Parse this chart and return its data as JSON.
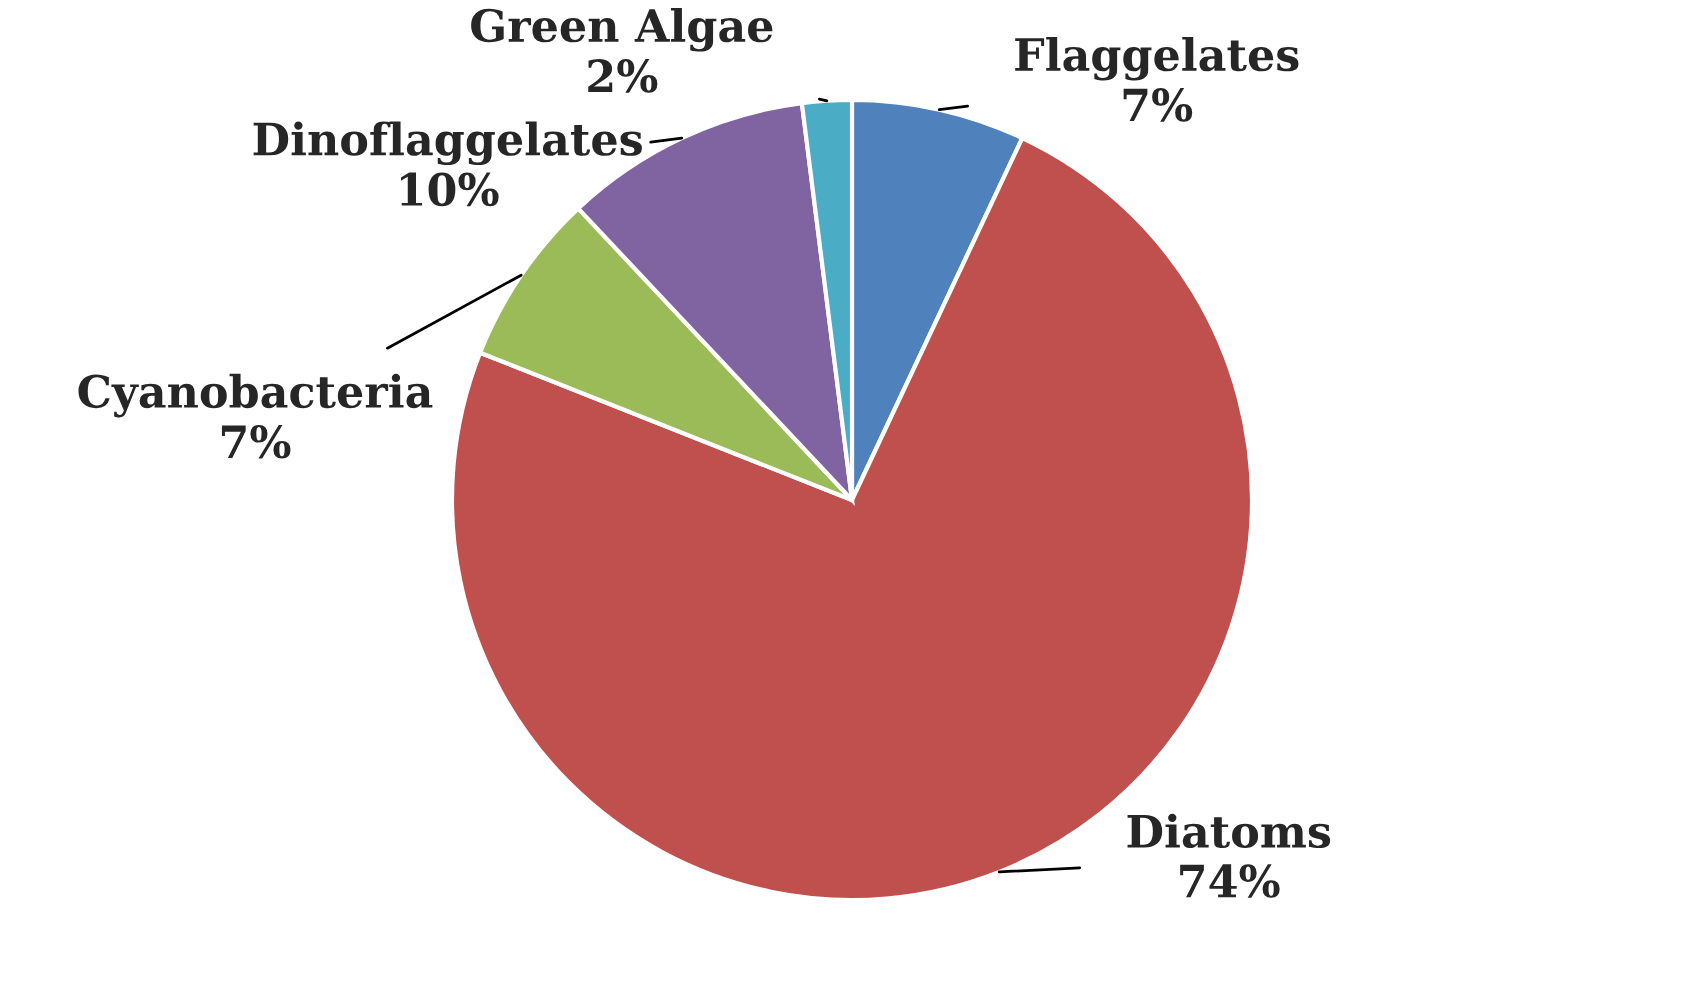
{
  "chart_data": {
    "type": "pie",
    "categories": [
      "Flaggelates",
      "Diatoms",
      "Cyanobacteria",
      "Dinoflaggelates",
      "Green Algae"
    ],
    "values": [
      7,
      74,
      7,
      10,
      2
    ],
    "value_labels": [
      "7%",
      "74%",
      "7%",
      "10%",
      "2%"
    ],
    "colors": [
      "#4f81bd",
      "#c0504d",
      "#9bbb59",
      "#8064a2",
      "#4bacc6"
    ],
    "legend": false
  }
}
